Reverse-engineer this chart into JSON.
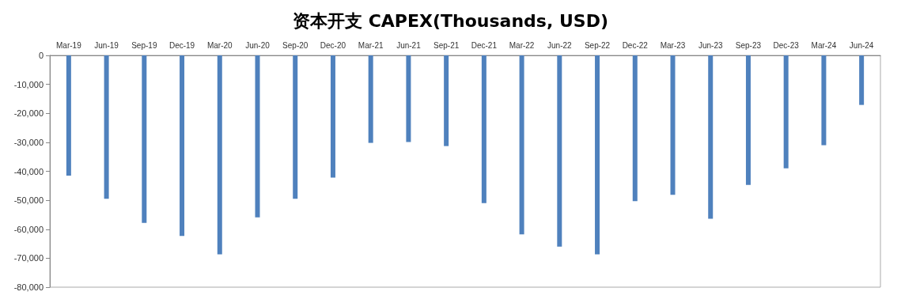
{
  "chart_data": {
    "type": "bar",
    "title": "资本开支 CAPEX(Thousands, USD)",
    "categories": [
      "Mar-19",
      "Jun-19",
      "Sep-19",
      "Dec-19",
      "Mar-20",
      "Jun-20",
      "Sep-20",
      "Dec-20",
      "Mar-21",
      "Jun-21",
      "Sep-21",
      "Dec-21",
      "Mar-22",
      "Jun-22",
      "Sep-22",
      "Dec-22",
      "Mar-23",
      "Jun-23",
      "Sep-23",
      "Dec-23",
      "Mar-24",
      "Jun-24"
    ],
    "values": [
      -41500,
      -49500,
      -57800,
      -62300,
      -68700,
      -55900,
      -49500,
      -42200,
      -30200,
      -29900,
      -31300,
      -51000,
      -61800,
      -66000,
      -68700,
      -50300,
      -48100,
      -56400,
      -44700,
      -39000,
      -31000,
      -17100
    ],
    "color": "#4f81bd",
    "ylim": [
      -80000,
      0
    ],
    "yticks": [
      {
        "value": -80000,
        "label": "-80,000"
      },
      {
        "value": -70000,
        "label": "-70,000"
      },
      {
        "value": -60000,
        "label": "-60,000"
      },
      {
        "value": -50000,
        "label": "-50,000"
      },
      {
        "value": -40000,
        "label": "-40,000"
      },
      {
        "value": -30000,
        "label": "-30,000"
      },
      {
        "value": -20000,
        "label": "-20,000"
      },
      {
        "value": -10000,
        "label": "-10,000"
      },
      0
    ],
    "grid": false
  }
}
